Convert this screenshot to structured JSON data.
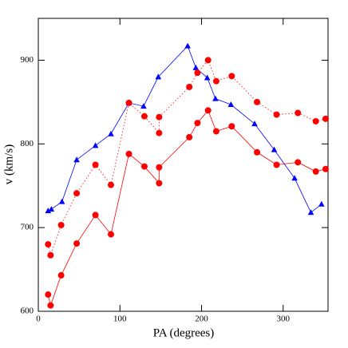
{
  "chart_data": {
    "type": "scatter",
    "x_label": "PA (degrees)",
    "y_label": "v (km/s)",
    "xlim": [
      0,
      355
    ],
    "ylim": [
      600,
      950
    ],
    "xticks": [
      0,
      100,
      200,
      300
    ],
    "yticks": [
      600,
      700,
      800,
      900
    ],
    "series": [
      {
        "color": "#0000ff",
        "marker": "triangle",
        "line_style": "solid",
        "x": [
          12,
          16,
          29,
          47,
          70,
          89,
          111,
          129,
          147,
          183,
          193,
          207,
          217,
          236,
          265,
          289,
          314,
          334,
          347
        ],
        "values": [
          720,
          722,
          731,
          781,
          798,
          812,
          849,
          845,
          880,
          917,
          891,
          879,
          854,
          847,
          824,
          793,
          759,
          718,
          728
        ]
      },
      {
        "color": "#ff0000",
        "marker": "circle",
        "line_style": "dotted",
        "x": [
          12,
          15,
          28,
          47,
          70,
          89,
          111,
          130,
          148,
          148,
          185,
          195,
          208,
          218,
          237,
          268,
          292,
          318,
          340,
          352
        ],
        "values": [
          680,
          667,
          703,
          741,
          775,
          751,
          849,
          833,
          813,
          832,
          868,
          885,
          900,
          875,
          881,
          850,
          835,
          837,
          827,
          830
        ]
      },
      {
        "color": "#ff0000",
        "marker": "circle",
        "line_style": "solid",
        "x": [
          12,
          15,
          28,
          47,
          70,
          89,
          111,
          130,
          148,
          148,
          185,
          195,
          208,
          218,
          237,
          268,
          292,
          318,
          340,
          352
        ],
        "values": [
          620,
          607,
          643,
          681,
          715,
          692,
          788,
          773,
          753,
          772,
          808,
          825,
          840,
          815,
          821,
          790,
          775,
          778,
          767,
          770
        ]
      }
    ]
  }
}
